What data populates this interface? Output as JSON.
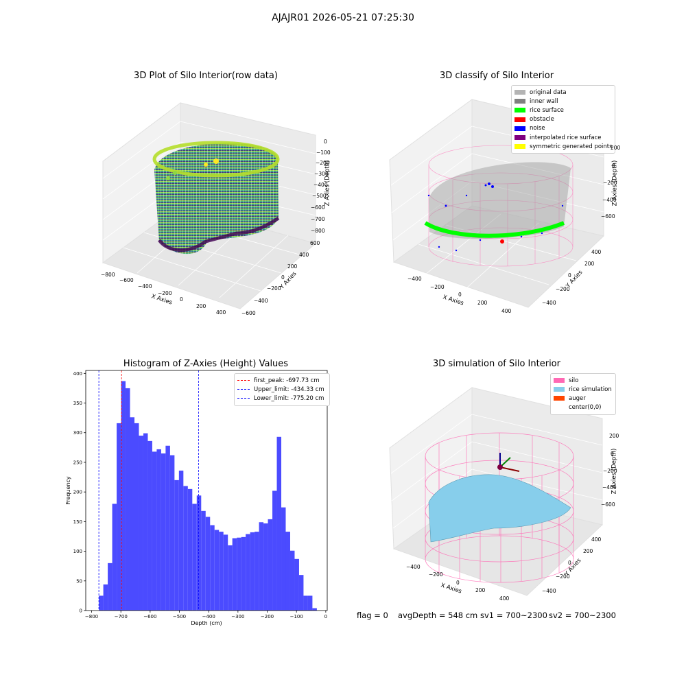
{
  "suptitle": "AJAJR01 2026-05-21 07:25:30",
  "footer": {
    "flag": "flag = 0",
    "avg_depth": "avgDepth = 548 cm",
    "sv1": "sv1 = 700~2300",
    "sv2": "sv2 = 700~2300"
  },
  "chart_data": [
    {
      "type": "scatter",
      "projection": "3d",
      "title": "3D Plot of Silo Interior(row data)",
      "xlabel": "X Axies",
      "ylabel": "Y Axies",
      "zlabel": "Z Axies (Depth)",
      "x_ticks": [
        "−800",
        "−600",
        "−400",
        "−200",
        "0",
        "200",
        "400"
      ],
      "y_ticks": [
        "−600",
        "−400",
        "−200",
        "0",
        "200",
        "400",
        "600"
      ],
      "z_ticks": [
        "−800",
        "−700",
        "−600",
        "−500",
        "−400",
        "−300",
        "−200",
        "−100",
        "0"
      ],
      "colormap": "viridis"
    },
    {
      "type": "scatter",
      "projection": "3d",
      "title": "3D classify of Silo Interior",
      "xlabel": "X Axies",
      "ylabel": "Y Axies",
      "zlabel": "Z Axies (Depth)",
      "x_ticks": [
        "−400",
        "−200",
        "0",
        "200",
        "400"
      ],
      "y_ticks": [
        "−400",
        "−200",
        "0",
        "200",
        "400"
      ],
      "z_ticks": [
        "−600",
        "−400",
        "−200",
        "0",
        "200"
      ],
      "legend_position": "top-right",
      "legend": [
        {
          "name": "original data",
          "color": "#b4b4b4"
        },
        {
          "name": "inner wall",
          "color": "#808080"
        },
        {
          "name": "rice surface",
          "color": "#00ff00"
        },
        {
          "name": "obstacle",
          "color": "#ff0000"
        },
        {
          "name": "noise",
          "color": "#0000ff"
        },
        {
          "name": "interpolated rice surface",
          "color": "#800080"
        },
        {
          "name": "symmetric generated points",
          "color": "#ffff00"
        }
      ]
    },
    {
      "type": "bar",
      "title": "Histogram of Z-Axies (Height) Values",
      "xlabel": "Depth (cm)",
      "ylabel": "Frequency",
      "xlim": [
        -820,
        5
      ],
      "ylim": [
        0,
        405
      ],
      "x_ticks": [
        -800,
        -700,
        -600,
        -500,
        -400,
        -300,
        -200,
        -100,
        0
      ],
      "y_ticks": [
        0,
        50,
        100,
        150,
        200,
        250,
        300,
        350,
        400
      ],
      "bar_color": "#4b4bff",
      "bin_start": -775.2,
      "bin_width": 15.2,
      "values": [
        25,
        44,
        80,
        180,
        316,
        387,
        375,
        326,
        316,
        295,
        299,
        286,
        268,
        272,
        265,
        278,
        262,
        220,
        236,
        210,
        205,
        180,
        194,
        168,
        158,
        144,
        136,
        133,
        128,
        110,
        122,
        123,
        124,
        129,
        132,
        133,
        149,
        147,
        154,
        202,
        293,
        174,
        133,
        101,
        87,
        60,
        25,
        25,
        4
      ],
      "vlines": [
        {
          "name": "first_peak: -697.73 cm",
          "x": -697.73,
          "color": "#ff0000"
        },
        {
          "name": "Upper_limit: -434.33 cm",
          "x": -434.33,
          "color": "#0000ff"
        },
        {
          "name": "Lower_limit: -775.20 cm",
          "x": -775.2,
          "color": "#0000ff"
        }
      ],
      "grid": false,
      "legend_position": "top-right"
    },
    {
      "type": "surface",
      "projection": "3d",
      "title": "3D simulation of Silo Interior",
      "xlabel": "X Axies",
      "ylabel": "Y Axies",
      "zlabel": "Z Axies (Depth)",
      "x_ticks": [
        "−400",
        "−200",
        "0",
        "200",
        "400"
      ],
      "y_ticks": [
        "−400",
        "−200",
        "0",
        "200",
        "400"
      ],
      "z_ticks": [
        "−600",
        "−400",
        "−200",
        "0",
        "200"
      ],
      "legend_position": "top-right",
      "legend": [
        {
          "name": "silo",
          "color": "#ff69b4"
        },
        {
          "name": "rice simulation",
          "color": "#87ceeb"
        },
        {
          "name": "auger",
          "color": "#ff4500"
        },
        {
          "name": "center(0,0)",
          "color": "#ffffff"
        }
      ]
    }
  ]
}
